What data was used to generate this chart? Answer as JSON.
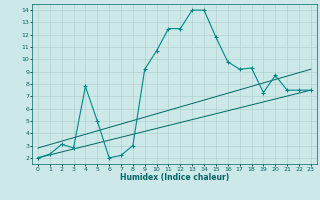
{
  "title": "",
  "xlabel": "Humidex (Indice chaleur)",
  "bg_color": "#cce8e8",
  "grid_color": "#aacccc",
  "line_color": "#006666",
  "line_color2": "#008888",
  "xlim": [
    -0.5,
    23.5
  ],
  "ylim": [
    1.5,
    14.5
  ],
  "xticks": [
    0,
    1,
    2,
    3,
    4,
    5,
    6,
    7,
    8,
    9,
    10,
    11,
    12,
    13,
    14,
    15,
    16,
    17,
    18,
    19,
    20,
    21,
    22,
    23
  ],
  "yticks": [
    2,
    3,
    4,
    5,
    6,
    7,
    8,
    9,
    10,
    11,
    12,
    13,
    14
  ],
  "wavy_x": [
    0,
    1,
    2,
    3,
    4,
    5,
    6,
    7,
    8,
    9,
    10,
    11,
    12,
    13,
    14,
    15,
    16,
    17,
    18,
    19,
    20,
    21,
    22,
    23
  ],
  "wavy_y": [
    2.0,
    2.3,
    3.1,
    2.8,
    7.8,
    5.0,
    2.0,
    2.2,
    3.0,
    9.2,
    10.7,
    12.5,
    12.5,
    14.0,
    14.0,
    11.8,
    9.8,
    9.2,
    9.3,
    7.3,
    8.7,
    7.5,
    7.5,
    7.5
  ],
  "line1_x": [
    0,
    23
  ],
  "line1_y": [
    2.0,
    7.5
  ],
  "line2_x": [
    0,
    23
  ],
  "line2_y": [
    2.8,
    9.2
  ]
}
